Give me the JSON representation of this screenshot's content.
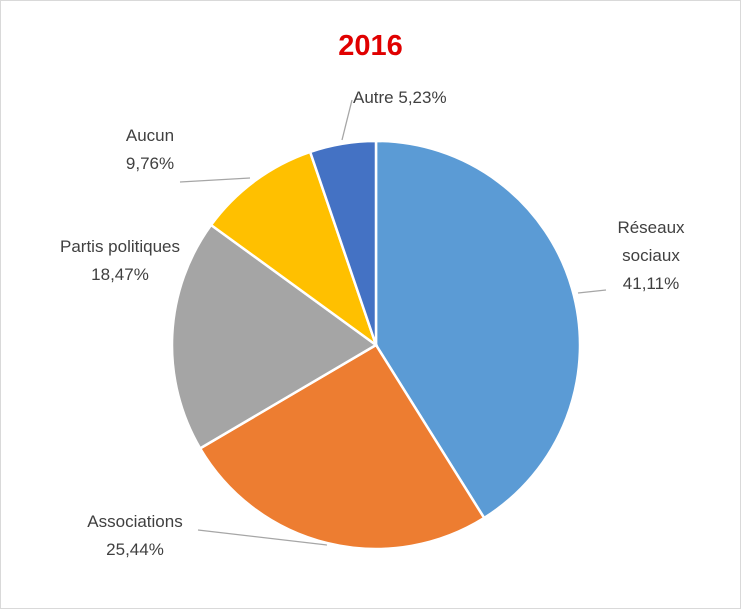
{
  "chart_data": {
    "type": "pie",
    "title": "2016",
    "categories": [
      "Réseaux sociaux",
      "Associations",
      "Partis politiques",
      "Aucun",
      "Autre"
    ],
    "values": [
      41.11,
      25.44,
      18.47,
      9.76,
      5.23
    ],
    "value_labels": [
      "41,11%",
      "25,44%",
      "18,47%",
      "9,76%",
      "5,23%"
    ],
    "colors": [
      "#5b9bd5",
      "#ed7d31",
      "#a5a5a5",
      "#ffc000",
      "#4472c4"
    ]
  }
}
